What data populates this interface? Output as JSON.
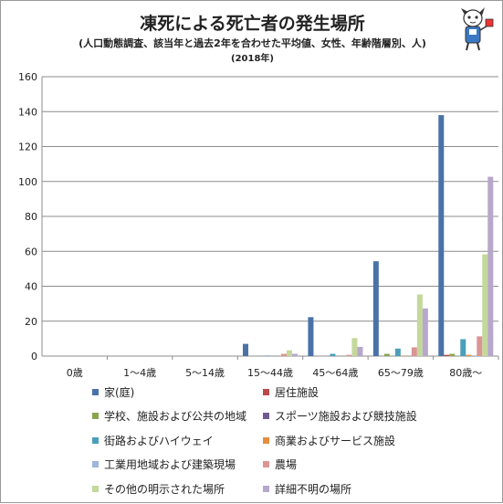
{
  "chart_data": {
    "type": "bar",
    "title": "凍死による死亡者の発生場所",
    "subtitle": "(人口動態調査、該当年と過去2年を合わせた平均値、女性、年齢階層別、人)",
    "subtitle2": "(2018年)",
    "categories": [
      "0歳",
      "1～4歳",
      "5～14歳",
      "15～44歳",
      "45～64歳",
      "65～79歳",
      "80歳～"
    ],
    "ylim": [
      0,
      160
    ],
    "yticks": [
      0,
      20,
      40,
      60,
      80,
      100,
      120,
      140,
      160
    ],
    "grid": true,
    "legend_position": "bottom",
    "series": [
      {
        "name": "家(庭)",
        "color": "#4a72a8",
        "values": [
          0,
          0,
          0,
          7,
          22.3,
          54.3,
          138
        ]
      },
      {
        "name": "居住施設",
        "color": "#b84a47",
        "values": [
          0,
          0,
          0,
          0,
          0,
          0,
          0.7
        ]
      },
      {
        "name": "学校、施設および公共の地域",
        "color": "#8aa54d",
        "values": [
          0,
          0,
          0,
          0,
          0,
          1.3,
          1.3
        ]
      },
      {
        "name": "スポーツ施設および競技施設",
        "color": "#705a91",
        "values": [
          0,
          0,
          0,
          0,
          0,
          0,
          0
        ]
      },
      {
        "name": "街路およびハイウェイ",
        "color": "#4a9fba",
        "values": [
          0,
          0,
          0,
          0.3,
          1.3,
          4.3,
          9.7
        ]
      },
      {
        "name": "商業およびサービス施設",
        "color": "#e58e3e",
        "values": [
          0,
          0,
          0,
          0,
          0,
          0.3,
          0.7
        ]
      },
      {
        "name": "工業用地域および建築現場",
        "color": "#9db7da",
        "values": [
          0,
          0,
          0,
          0,
          0,
          0,
          0
        ]
      },
      {
        "name": "農場",
        "color": "#db9594",
        "values": [
          0,
          0,
          0,
          1.3,
          0.7,
          5,
          11.3
        ]
      },
      {
        "name": "その他の明示された場所",
        "color": "#c3d89a",
        "values": [
          0,
          0,
          0,
          3.3,
          10.3,
          35.3,
          58.3
        ]
      },
      {
        "name": "詳細不明の場所",
        "color": "#b7a7cb",
        "values": [
          0,
          0,
          0,
          1.3,
          5.3,
          27.3,
          102.7
        ]
      }
    ]
  }
}
